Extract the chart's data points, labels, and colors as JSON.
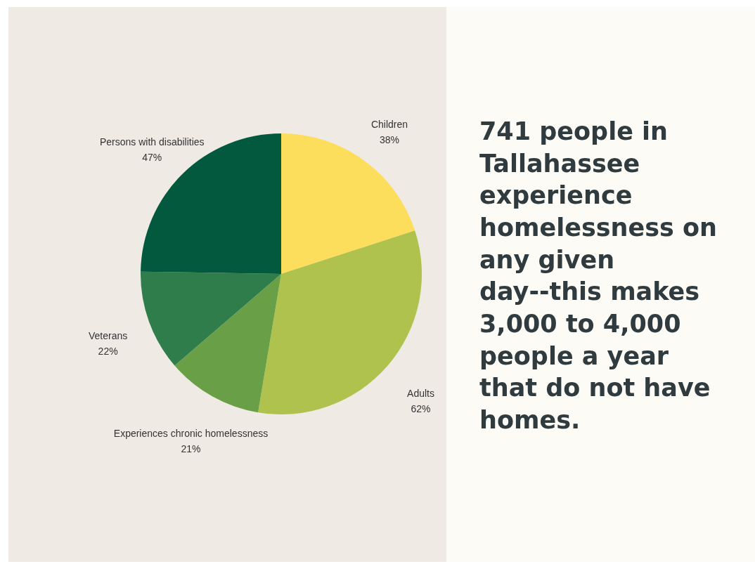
{
  "chart_data": {
    "type": "pie",
    "categories": [
      "Children",
      "Adults",
      "Experiences chronic homelessness",
      "Veterans",
      "Persons with disabilities"
    ],
    "values": [
      38,
      62,
      21,
      22,
      47
    ],
    "value_labels": [
      "38%",
      "62%",
      "21%",
      "22%",
      "47%"
    ],
    "colors": [
      "#fddd5c",
      "#b0c24e",
      "#69a047",
      "#2e7d4a",
      "#03593e"
    ],
    "legend": false,
    "annotations": [
      "741 people in Tallahassee experience homelessness on any given day--this makes 3,000 to 4,000 people a year that do not have homes."
    ]
  }
}
